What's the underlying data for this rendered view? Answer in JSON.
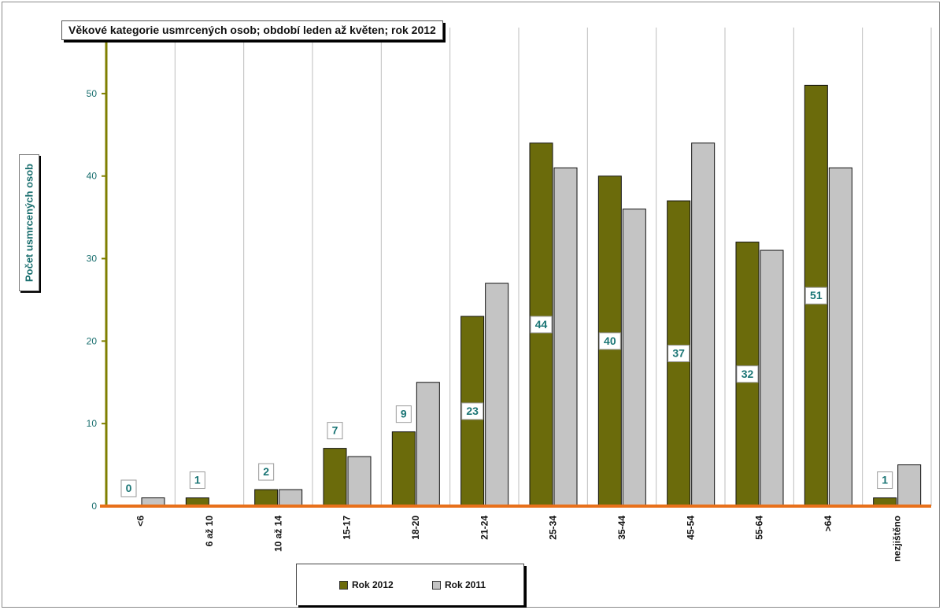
{
  "chart_data": {
    "type": "bar",
    "title": "Věkové kategorie usmrcených osob;  období leden až květen; rok  2012",
    "ylabel": "Počet usmrcených osob",
    "xlabel": "",
    "categories": [
      "<6",
      "6 až 10",
      "10 až 14",
      "15-17",
      "18-20",
      "21-24",
      "25-34",
      "35-44",
      "45-54",
      "55-64",
      ">64",
      "nezjištěno"
    ],
    "series": [
      {
        "name": "Rok 2012",
        "values": [
          0,
          1,
          2,
          7,
          9,
          23,
          44,
          40,
          37,
          32,
          51,
          1
        ],
        "color": "#6b6b0b"
      },
      {
        "name": "Rok 2011",
        "values": [
          1,
          0,
          2,
          6,
          15,
          27,
          41,
          36,
          44,
          31,
          41,
          5
        ],
        "color": "#c4c4c4"
      }
    ],
    "data_labels": [
      "0",
      "1",
      "2",
      "7",
      "9",
      "23",
      "44",
      "40",
      "37",
      "32",
      "51",
      "1"
    ],
    "ylim": [
      0,
      58
    ],
    "yticks": [
      "0",
      "10",
      "20",
      "30",
      "40",
      "50"
    ],
    "grid": true,
    "legend_position": "bottom",
    "colors": {
      "axis_y": "#7f7f00",
      "axis_x": "#e8701a",
      "tick_text": "#1a6f6f",
      "label_text": "#1a7575"
    }
  }
}
